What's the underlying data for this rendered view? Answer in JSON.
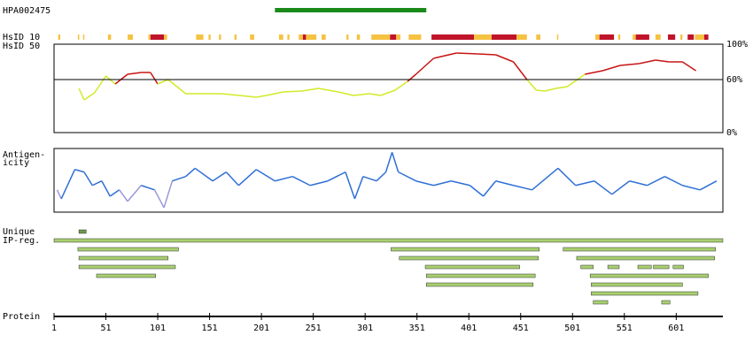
{
  "antigen": {
    "name": "HPA002475",
    "start": 214,
    "end": 360,
    "color": "#1a8a1a"
  },
  "axis": {
    "label": "Protein",
    "xlim": [
      1,
      646
    ],
    "xticks": [
      1,
      51,
      101,
      151,
      201,
      251,
      301,
      351,
      401,
      451,
      501,
      551,
      601
    ]
  },
  "hsid10": {
    "label": "HsID 10",
    "segments": [
      [
        5,
        7,
        "#f5c242"
      ],
      [
        24,
        25,
        "#f5c242"
      ],
      [
        29,
        30,
        "#f5c242"
      ],
      [
        53,
        56,
        "#f5c242"
      ],
      [
        72,
        77,
        "#f5c242"
      ],
      [
        92,
        94,
        "#f5c242"
      ],
      [
        94,
        107,
        "#c0142a"
      ],
      [
        107,
        110,
        "#f5c242"
      ],
      [
        138,
        145,
        "#f5c242"
      ],
      [
        150,
        152,
        "#f5c242"
      ],
      [
        160,
        162,
        "#f5c242"
      ],
      [
        175,
        177,
        "#f5c242"
      ],
      [
        190,
        194,
        "#f5c242"
      ],
      [
        218,
        222,
        "#f5c242"
      ],
      [
        226,
        228,
        "#f5c242"
      ],
      [
        237,
        241,
        "#f5c242"
      ],
      [
        241,
        244,
        "#c0142a"
      ],
      [
        244,
        254,
        "#f5c242"
      ],
      [
        259,
        263,
        "#f5c242"
      ],
      [
        283,
        285,
        "#f5c242"
      ],
      [
        293,
        296,
        "#f5c242"
      ],
      [
        307,
        325,
        "#f5c242"
      ],
      [
        325,
        331,
        "#c0142a"
      ],
      [
        331,
        335,
        "#f5c242"
      ],
      [
        343,
        355,
        "#f5c242"
      ],
      [
        365,
        406,
        "#c0142a"
      ],
      [
        406,
        423,
        "#f5c242"
      ],
      [
        423,
        447,
        "#c0142a"
      ],
      [
        447,
        457,
        "#f5c242"
      ],
      [
        466,
        470,
        "#f5c242"
      ],
      [
        486,
        487,
        "#f5c242"
      ],
      [
        523,
        527,
        "#f5c242"
      ],
      [
        527,
        541,
        "#c0142a"
      ],
      [
        545,
        547,
        "#f5c242"
      ],
      [
        559,
        562,
        "#f5c242"
      ],
      [
        562,
        575,
        "#c0142a"
      ],
      [
        581,
        586,
        "#f5c242"
      ],
      [
        593,
        600,
        "#c0142a"
      ],
      [
        605,
        607,
        "#f5c242"
      ],
      [
        612,
        618,
        "#c0142a"
      ],
      [
        619,
        628,
        "#f5c242"
      ],
      [
        628,
        632,
        "#c0142a"
      ]
    ]
  },
  "identity": {
    "label": "HsID 50",
    "ylim": [
      0,
      100
    ],
    "yticks": [
      {
        "value": 100,
        "label": "100%"
      },
      {
        "value": 60,
        "label": "60%"
      },
      {
        "value": 0,
        "label": "0%"
      }
    ],
    "threshold": 60,
    "color_above": "#c81414",
    "color_below": "#d2ea28",
    "x": [
      25,
      30,
      40,
      51,
      60,
      72,
      85,
      94,
      101,
      111,
      128,
      145,
      162,
      180,
      196,
      210,
      222,
      240,
      256,
      275,
      290,
      305,
      316,
      330,
      342,
      350,
      367,
      389,
      410,
      427,
      444,
      457,
      466,
      474,
      485,
      496,
      513,
      530,
      547,
      565,
      581,
      594,
      607,
      620
    ],
    "values": [
      50,
      37,
      45,
      64,
      55,
      66,
      68,
      68,
      55,
      60,
      44,
      44,
      44,
      42,
      40,
      43,
      46,
      47,
      50,
      46,
      42,
      44,
      42,
      48,
      58,
      66,
      84,
      90,
      89,
      88,
      80,
      60,
      48,
      47,
      50,
      52,
      66,
      70,
      76,
      78,
      82,
      80,
      80,
      70
    ]
  },
  "antigenicity": {
    "label": [
      "Antigen-",
      "icity"
    ],
    "ylim": [
      0,
      100
    ],
    "threshold": 30,
    "color_above": "#2f6fd6",
    "color_below": "#9a98d8",
    "x": [
      4,
      8,
      21,
      30,
      38,
      47,
      55,
      64,
      72,
      85,
      98,
      107,
      115,
      128,
      137,
      154,
      167,
      179,
      196,
      214,
      231,
      248,
      265,
      282,
      291,
      299,
      312,
      321,
      327,
      333,
      350,
      367,
      384,
      402,
      415,
      427,
      444,
      462,
      487,
      504,
      522,
      539,
      556,
      573,
      590,
      607,
      624,
      640
    ],
    "values": [
      35,
      21,
      67,
      63,
      42,
      49,
      25,
      35,
      17,
      42,
      35,
      7,
      49,
      56,
      69,
      49,
      63,
      42,
      67,
      49,
      56,
      42,
      49,
      63,
      21,
      56,
      49,
      63,
      94,
      63,
      49,
      42,
      49,
      42,
      25,
      49,
      42,
      35,
      69,
      42,
      49,
      28,
      49,
      42,
      56,
      42,
      35,
      49
    ]
  },
  "ip_regions": {
    "label": [
      "Unique",
      "IP-reg."
    ],
    "unique": [
      25,
      32
    ],
    "unique_color": "#6a9a4a",
    "color": "#a8d070",
    "rows": [
      [
        [
          1,
          646
        ]
      ],
      [
        [
          24,
          121
        ],
        [
          326,
          469
        ],
        [
          492,
          639
        ]
      ],
      [
        [
          25,
          111
        ],
        [
          334,
          468
        ],
        [
          505,
          638
        ]
      ],
      [
        [
          25,
          118
        ],
        [
          359,
          450
        ],
        [
          509,
          521
        ],
        [
          535,
          546
        ],
        [
          564,
          577
        ],
        [
          579,
          594
        ],
        [
          598,
          608
        ]
      ],
      [
        [
          42,
          99
        ],
        [
          360,
          465
        ],
        [
          518,
          632
        ]
      ],
      [
        [
          360,
          463
        ],
        [
          519,
          607
        ]
      ],
      [
        [
          519,
          622
        ]
      ],
      [
        [
          521,
          535
        ],
        [
          587,
          595
        ]
      ]
    ]
  }
}
